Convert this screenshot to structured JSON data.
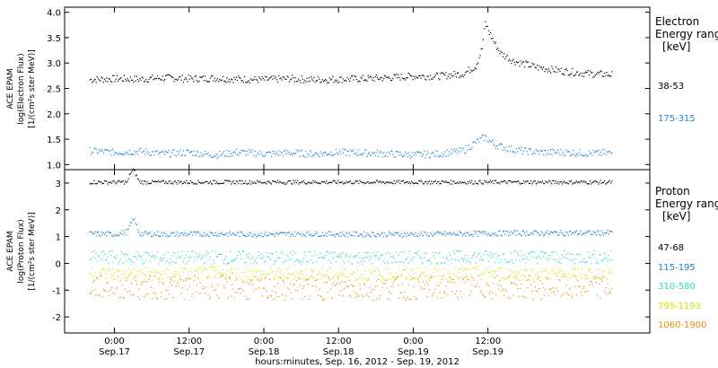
{
  "chart_data": [
    {
      "type": "scatter",
      "panel": "electron",
      "ylabel_lines": [
        "ACE EPAM",
        "log(Electron Flux)",
        "[1/(cm²s ster MeV)]"
      ],
      "ylim": [
        0.9,
        4.1
      ],
      "yticks": [
        "1.0",
        "1.5",
        "2.0",
        "2.5",
        "3.0",
        "3.5",
        "4.0"
      ],
      "legend_title": [
        "Electron",
        "Energy ranges",
        "[keV]"
      ],
      "series": [
        {
          "name": "38-53",
          "color": "#000000",
          "points": [
            [
              -4,
              2.68
            ],
            [
              0,
              2.7
            ],
            [
              4,
              2.69
            ],
            [
              8,
              2.72
            ],
            [
              12,
              2.7
            ],
            [
              16,
              2.71
            ],
            [
              20,
              2.69
            ],
            [
              24,
              2.68
            ],
            [
              28,
              2.7
            ],
            [
              32,
              2.68
            ],
            [
              36,
              2.69
            ],
            [
              40,
              2.7
            ],
            [
              44,
              2.72
            ],
            [
              48,
              2.75
            ],
            [
              52,
              2.75
            ],
            [
              56,
              2.8
            ],
            [
              58,
              2.95
            ],
            [
              59,
              3.3
            ],
            [
              59.5,
              3.8
            ],
            [
              60,
              3.65
            ],
            [
              61,
              3.4
            ],
            [
              62,
              3.2
            ],
            [
              64,
              3.05
            ],
            [
              68,
              2.92
            ],
            [
              72,
              2.85
            ],
            [
              76,
              2.8
            ],
            [
              80,
              2.78
            ]
          ]
        },
        {
          "name": "175-315",
          "color": "#1e88d8",
          "points": [
            [
              -4,
              1.28
            ],
            [
              0,
              1.25
            ],
            [
              4,
              1.27
            ],
            [
              8,
              1.22
            ],
            [
              12,
              1.25
            ],
            [
              16,
              1.2
            ],
            [
              20,
              1.25
            ],
            [
              24,
              1.22
            ],
            [
              28,
              1.24
            ],
            [
              32,
              1.22
            ],
            [
              36,
              1.25
            ],
            [
              40,
              1.24
            ],
            [
              44,
              1.22
            ],
            [
              48,
              1.2
            ],
            [
              52,
              1.22
            ],
            [
              56,
              1.28
            ],
            [
              58,
              1.45
            ],
            [
              59.5,
              1.55
            ],
            [
              61,
              1.4
            ],
            [
              64,
              1.3
            ],
            [
              68,
              1.25
            ],
            [
              72,
              1.25
            ],
            [
              76,
              1.23
            ],
            [
              80,
              1.24
            ]
          ]
        }
      ]
    },
    {
      "type": "scatter",
      "panel": "proton",
      "ylabel_lines": [
        "ACE EPAM",
        "log(Proton Flux)",
        "[1/(cm²s ster MeV)]"
      ],
      "ylim": [
        -2.6,
        3.5
      ],
      "yticks": [
        "-2",
        "-1",
        "0",
        "1",
        "2",
        "3"
      ],
      "legend_title": [
        "Proton",
        "Energy ranges",
        "[keV]"
      ],
      "series": [
        {
          "name": "47-68",
          "color": "#000000",
          "points": [
            [
              -4,
              3.05
            ],
            [
              0,
              3.05
            ],
            [
              2,
              3.05
            ],
            [
              2.5,
              3.4
            ],
            [
              3,
              3.5
            ],
            [
              4,
              3.05
            ],
            [
              8,
              3.05
            ],
            [
              16,
              3.05
            ],
            [
              24,
              3.05
            ],
            [
              32,
              3.05
            ],
            [
              40,
              3.05
            ],
            [
              48,
              3.05
            ],
            [
              56,
              3.05
            ],
            [
              64,
              3.05
            ],
            [
              72,
              3.05
            ],
            [
              80,
              3.05
            ]
          ]
        },
        {
          "name": "115-195",
          "color": "#1e7fd0",
          "points": [
            [
              -4,
              1.12
            ],
            [
              0,
              1.1
            ],
            [
              2,
              1.2
            ],
            [
              3,
              1.7
            ],
            [
              4,
              1.12
            ],
            [
              8,
              1.1
            ],
            [
              16,
              1.12
            ],
            [
              24,
              1.1
            ],
            [
              32,
              1.12
            ],
            [
              40,
              1.1
            ],
            [
              48,
              1.1
            ],
            [
              56,
              1.12
            ],
            [
              64,
              1.15
            ],
            [
              72,
              1.15
            ],
            [
              80,
              1.16
            ]
          ]
        },
        {
          "name": "310-580",
          "color": "#2fd8c8",
          "points": [
            [
              -4,
              0.25
            ],
            [
              8,
              0.22
            ],
            [
              16,
              0.25
            ],
            [
              24,
              0.22
            ],
            [
              32,
              0.25
            ],
            [
              40,
              0.22
            ],
            [
              48,
              0.24
            ],
            [
              56,
              0.25
            ],
            [
              64,
              0.28
            ],
            [
              72,
              0.25
            ],
            [
              80,
              0.25
            ]
          ]
        },
        {
          "name": "795-1193",
          "color": "#d4e800",
          "points": [
            [
              -4,
              -0.35
            ],
            [
              8,
              -0.4
            ],
            [
              16,
              -0.35
            ],
            [
              24,
              -0.4
            ],
            [
              32,
              -0.38
            ],
            [
              40,
              -0.4
            ],
            [
              48,
              -0.38
            ],
            [
              56,
              -0.35
            ],
            [
              64,
              -0.35
            ],
            [
              72,
              -0.38
            ],
            [
              80,
              -0.35
            ]
          ]
        },
        {
          "name": "1060-1900",
          "color": "#f08a0a",
          "points": [
            [
              -4,
              -0.85
            ],
            [
              8,
              -0.9
            ],
            [
              16,
              -0.85
            ],
            [
              24,
              -0.95
            ],
            [
              32,
              -0.9
            ],
            [
              40,
              -0.92
            ],
            [
              48,
              -0.9
            ],
            [
              56,
              -0.88
            ],
            [
              64,
              -0.85
            ],
            [
              72,
              -0.9
            ],
            [
              80,
              -0.88
            ]
          ]
        }
      ]
    }
  ],
  "x_axis": {
    "range_hours": [
      -8,
      86
    ],
    "ticks": [
      {
        "hours": 0,
        "time": "0:00",
        "date": "Sep.17"
      },
      {
        "hours": 12,
        "time": "12:00",
        "date": "Sep.17"
      },
      {
        "hours": 24,
        "time": "0:00",
        "date": "Sep.18"
      },
      {
        "hours": 36,
        "time": "12:00",
        "date": "Sep.18"
      },
      {
        "hours": 48,
        "time": "0:00",
        "date": "Sep.19"
      },
      {
        "hours": 60,
        "time": "12:00",
        "date": "Sep.19"
      }
    ],
    "xlabel": "hours:minutes, Sep. 16, 2012 - Sep. 19, 2012"
  }
}
